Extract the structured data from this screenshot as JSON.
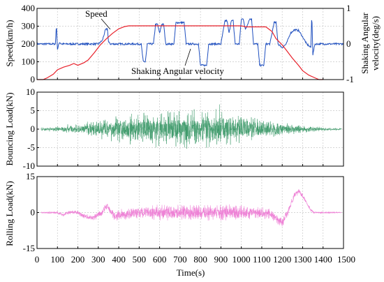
{
  "chart_data": [
    {
      "type": "line",
      "panel": "top",
      "x_range": [
        0,
        1500
      ],
      "left_axis": {
        "label": "Speed(km/h)",
        "range": [
          0,
          400
        ],
        "ticks": [
          0,
          100,
          200,
          300,
          400
        ]
      },
      "right_axis": {
        "label": "Shaking Angular velocity(deg/s)",
        "range": [
          -1,
          1
        ],
        "ticks": [
          "-1",
          "0",
          "1"
        ]
      },
      "annotations": [
        "Speed",
        "Shaking Angular velocity"
      ],
      "series": [
        {
          "name": "Speed",
          "axis": "left",
          "color": "#e8202a",
          "points": [
            [
              0,
              0
            ],
            [
              30,
              0
            ],
            [
              50,
              10
            ],
            [
              80,
              30
            ],
            [
              100,
              55
            ],
            [
              130,
              70
            ],
            [
              160,
              80
            ],
            [
              180,
              90
            ],
            [
              200,
              80
            ],
            [
              230,
              95
            ],
            [
              250,
              110
            ],
            [
              280,
              150
            ],
            [
              310,
              195
            ],
            [
              340,
              230
            ],
            [
              370,
              260
            ],
            [
              400,
              285
            ],
            [
              430,
              298
            ],
            [
              450,
              302
            ],
            [
              500,
              302
            ],
            [
              600,
              302
            ],
            [
              700,
              302
            ],
            [
              800,
              302
            ],
            [
              900,
              302
            ],
            [
              990,
              302
            ],
            [
              1010,
              300
            ],
            [
              1020,
              296
            ],
            [
              1060,
              296
            ],
            [
              1120,
              296
            ],
            [
              1150,
              270
            ],
            [
              1170,
              230
            ],
            [
              1200,
              195
            ],
            [
              1220,
              165
            ],
            [
              1250,
              120
            ],
            [
              1280,
              80
            ],
            [
              1300,
              50
            ],
            [
              1330,
              25
            ],
            [
              1360,
              10
            ],
            [
              1380,
              0
            ],
            [
              1400,
              0
            ]
          ]
        },
        {
          "name": "Shaking Angular velocity",
          "axis": "right",
          "color": "#1f4fbf",
          "points": [
            [
              0,
              0
            ],
            [
              90,
              0
            ],
            [
              95,
              0.55
            ],
            [
              100,
              -0.15
            ],
            [
              110,
              0.05
            ],
            [
              120,
              0
            ],
            [
              300,
              0
            ],
            [
              320,
              0.1
            ],
            [
              335,
              0.4
            ],
            [
              345,
              0.42
            ],
            [
              350,
              0.05
            ],
            [
              360,
              0
            ],
            [
              420,
              0
            ],
            [
              460,
              0
            ],
            [
              510,
              0
            ],
            [
              520,
              -0.5
            ],
            [
              530,
              -0.5
            ],
            [
              540,
              0
            ],
            [
              570,
              0
            ],
            [
              580,
              0.55
            ],
            [
              590,
              0.55
            ],
            [
              600,
              0.3
            ],
            [
              610,
              0.55
            ],
            [
              620,
              0.55
            ],
            [
              630,
              0
            ],
            [
              670,
              0
            ],
            [
              680,
              0.6
            ],
            [
              700,
              0.6
            ],
            [
              720,
              0.6
            ],
            [
              730,
              0
            ],
            [
              790,
              0
            ],
            [
              800,
              -0.6
            ],
            [
              830,
              -0.6
            ],
            [
              840,
              0
            ],
            [
              900,
              0
            ],
            [
              920,
              0.65
            ],
            [
              930,
              0.65
            ],
            [
              940,
              0.3
            ],
            [
              950,
              0.65
            ],
            [
              960,
              0.65
            ],
            [
              970,
              0
            ],
            [
              990,
              0
            ],
            [
              1000,
              0.7
            ],
            [
              1010,
              0.7
            ],
            [
              1020,
              0.4
            ],
            [
              1040,
              0.7
            ],
            [
              1050,
              0.7
            ],
            [
              1060,
              0
            ],
            [
              1080,
              0
            ],
            [
              1090,
              -0.6
            ],
            [
              1110,
              -0.6
            ],
            [
              1120,
              0
            ],
            [
              1140,
              0
            ],
            [
              1160,
              0.6
            ],
            [
              1170,
              0.6
            ],
            [
              1180,
              0
            ],
            [
              1200,
              -0.1
            ],
            [
              1220,
              0
            ],
            [
              1240,
              0.3
            ],
            [
              1260,
              0.4
            ],
            [
              1280,
              0.38
            ],
            [
              1300,
              0.2
            ],
            [
              1320,
              0
            ],
            [
              1340,
              -0.1
            ],
            [
              1345,
              0.85
            ],
            [
              1350,
              -0.3
            ],
            [
              1360,
              0
            ],
            [
              1400,
              0
            ],
            [
              1500,
              0
            ]
          ]
        }
      ]
    },
    {
      "type": "line",
      "panel": "middle",
      "x_range": [
        0,
        1500
      ],
      "y_label": "Bouncing Load(kN)",
      "y_range": [
        -10,
        10
      ],
      "y_ticks": [
        -10,
        -5,
        0,
        5,
        10
      ],
      "series": [
        {
          "name": "",
          "color": "#3d9a6a",
          "envelope": [
            [
              0,
              0.5
            ],
            [
              100,
              0.8
            ],
            [
              200,
              1.5
            ],
            [
              300,
              2.8
            ],
            [
              400,
              4.0
            ],
            [
              500,
              5.0
            ],
            [
              600,
              5.5
            ],
            [
              700,
              5.8
            ],
            [
              800,
              5.8
            ],
            [
              900,
              5.5
            ],
            [
              1000,
              4.5
            ],
            [
              1100,
              3.5
            ],
            [
              1200,
              2.0
            ],
            [
              1300,
              1.2
            ],
            [
              1400,
              0.6
            ],
            [
              1500,
              0.3
            ]
          ]
        }
      ]
    },
    {
      "type": "line",
      "panel": "bottom",
      "x_range": [
        0,
        1500
      ],
      "x_label": "Time(s)",
      "x_ticks": [
        0,
        100,
        200,
        300,
        400,
        500,
        600,
        700,
        800,
        900,
        1000,
        1100,
        1200,
        1300,
        1400,
        1500
      ],
      "y_label": "Rolling Load(kN)",
      "y_range": [
        -15,
        15
      ],
      "y_ticks": [
        -15,
        0,
        15
      ],
      "series": [
        {
          "name": "",
          "color": "#ee82d6",
          "baseline": [
            [
              0,
              0
            ],
            [
              100,
              0
            ],
            [
              130,
              -1
            ],
            [
              150,
              0
            ],
            [
              200,
              0
            ],
            [
              220,
              -1
            ],
            [
              250,
              -2
            ],
            [
              280,
              -2
            ],
            [
              320,
              0
            ],
            [
              340,
              3
            ],
            [
              360,
              1
            ],
            [
              380,
              -2
            ],
            [
              400,
              -1
            ],
            [
              500,
              0
            ],
            [
              700,
              0
            ],
            [
              900,
              0
            ],
            [
              1100,
              0
            ],
            [
              1150,
              -1
            ],
            [
              1180,
              -3
            ],
            [
              1200,
              -4
            ],
            [
              1220,
              -1
            ],
            [
              1240,
              3
            ],
            [
              1260,
              7
            ],
            [
              1280,
              9
            ],
            [
              1300,
              7
            ],
            [
              1320,
              4
            ],
            [
              1340,
              1
            ],
            [
              1360,
              0
            ],
            [
              1400,
              0
            ],
            [
              1500,
              0
            ]
          ],
          "envelope": [
            [
              0,
              0.3
            ],
            [
              200,
              1.0
            ],
            [
              300,
              1.5
            ],
            [
              400,
              2.5
            ],
            [
              600,
              3.5
            ],
            [
              800,
              3.8
            ],
            [
              1000,
              3.5
            ],
            [
              1100,
              3.0
            ],
            [
              1200,
              2.5
            ],
            [
              1300,
              1.0
            ],
            [
              1400,
              0.5
            ],
            [
              1500,
              0.2
            ]
          ]
        }
      ]
    }
  ]
}
